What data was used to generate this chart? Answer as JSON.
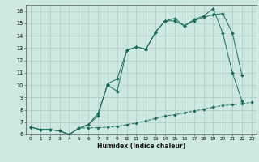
{
  "title": "",
  "xlabel": "Humidex (Indice chaleur)",
  "bg_color": "#cce8e0",
  "grid_color": "#aaccC4",
  "line_color": "#1a6b5a",
  "xlim": [
    -0.5,
    23.5
  ],
  "ylim": [
    6,
    16.5
  ],
  "xticks": [
    0,
    1,
    2,
    3,
    4,
    5,
    6,
    7,
    8,
    9,
    10,
    11,
    12,
    13,
    14,
    15,
    16,
    17,
    18,
    19,
    20,
    21,
    22,
    23
  ],
  "yticks": [
    6,
    7,
    8,
    9,
    10,
    11,
    12,
    13,
    14,
    15,
    16
  ],
  "line1_x": [
    0,
    1,
    2,
    3,
    4,
    5,
    6,
    7,
    8,
    9,
    10,
    11,
    12,
    13,
    14,
    15,
    16,
    17,
    18,
    19,
    20,
    21,
    22,
    23
  ],
  "line1_y": [
    6.6,
    6.4,
    6.4,
    6.3,
    6.0,
    6.5,
    6.55,
    6.55,
    6.6,
    6.65,
    6.8,
    6.95,
    7.1,
    7.3,
    7.5,
    7.6,
    7.75,
    7.9,
    8.05,
    8.2,
    8.35,
    8.4,
    8.5,
    8.6
  ],
  "line2_x": [
    0,
    1,
    2,
    3,
    4,
    5,
    6,
    7,
    8,
    9,
    10,
    11,
    12,
    13,
    14,
    15,
    16,
    17,
    18,
    19,
    20,
    21,
    22
  ],
  "line2_y": [
    6.6,
    6.4,
    6.4,
    6.3,
    6.0,
    6.5,
    6.8,
    7.5,
    10.1,
    10.5,
    12.8,
    13.1,
    12.9,
    14.3,
    15.2,
    15.2,
    14.8,
    15.2,
    15.5,
    15.7,
    15.8,
    14.2,
    10.8
  ],
  "line3_x": [
    0,
    1,
    2,
    3,
    4,
    5,
    6,
    7,
    8,
    9,
    10,
    11,
    12,
    13,
    14,
    15,
    16,
    17,
    18,
    19,
    20,
    21,
    22
  ],
  "line3_y": [
    6.6,
    6.4,
    6.4,
    6.3,
    6.0,
    6.5,
    6.8,
    7.7,
    10.0,
    9.5,
    12.8,
    13.1,
    12.9,
    14.3,
    15.2,
    15.4,
    14.8,
    15.3,
    15.6,
    16.2,
    14.2,
    11.0,
    8.7
  ]
}
